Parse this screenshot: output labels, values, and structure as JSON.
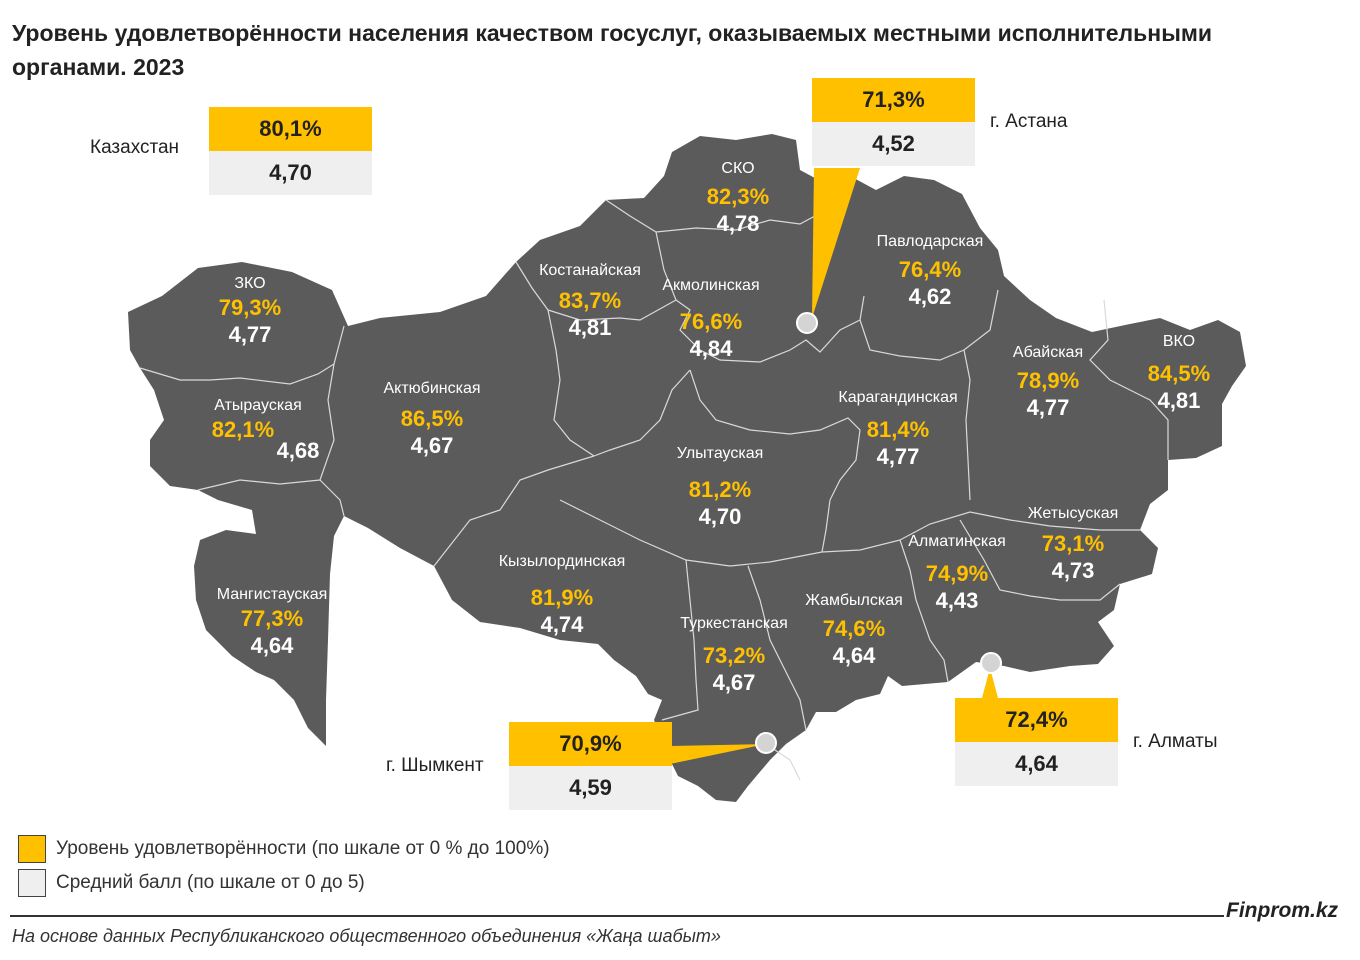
{
  "title": "Уровень удовлетворённости населения качеством госуслуг, оказываемых местными исполнительными органами. 2023",
  "colors": {
    "map_fill": "#5b5b5b",
    "border": "#d9d9d9",
    "accent": "#ffc000",
    "score_bg": "#efefef"
  },
  "regions": [
    {
      "name": "ЗКО",
      "pct": "79,3%",
      "score": "4,77"
    },
    {
      "name": "Атырауская",
      "pct": "82,1%",
      "score": "4,68"
    },
    {
      "name": "Мангистауская",
      "pct": "77,3%",
      "score": "4,64"
    },
    {
      "name": "Актюбинская",
      "pct": "86,5%",
      "score": "4,67"
    },
    {
      "name": "Костанайская",
      "pct": "83,7%",
      "score": "4,81"
    },
    {
      "name": "СКО",
      "pct": "82,3%",
      "score": "4,78"
    },
    {
      "name": "Акмолинская",
      "pct": "76,6%",
      "score": "4,84"
    },
    {
      "name": "Павлодарская",
      "pct": "76,4%",
      "score": "4,62"
    },
    {
      "name": "Абайская",
      "pct": "78,9%",
      "score": "4,77"
    },
    {
      "name": "ВКО",
      "pct": "84,5%",
      "score": "4,81"
    },
    {
      "name": "Карагандинская",
      "pct": "81,4%",
      "score": "4,77"
    },
    {
      "name": "Улытауская",
      "pct": "81,2%",
      "score": "4,70"
    },
    {
      "name": "Кызылординская",
      "pct": "81,9%",
      "score": "4,74"
    },
    {
      "name": "Туркестанская",
      "pct": "73,2%",
      "score": "4,67"
    },
    {
      "name": "Жамбылская",
      "pct": "74,6%",
      "score": "4,64"
    },
    {
      "name": "Алматинская",
      "pct": "74,9%",
      "score": "4,43"
    },
    {
      "name": "Жетысуская",
      "pct": "73,1%",
      "score": "4,73"
    }
  ],
  "callouts": [
    {
      "name": "Казахстан",
      "pct": "80,1%",
      "score": "4,70"
    },
    {
      "name": "г. Астана",
      "pct": "71,3%",
      "score": "4,52"
    },
    {
      "name": "г. Шымкент",
      "pct": "70,9%",
      "score": "4,59"
    },
    {
      "name": "г. Алматы",
      "pct": "72,4%",
      "score": "4,64"
    }
  ],
  "legend": [
    {
      "label": "Уровень удовлетворённости (по шкале от 0 % до 100%)",
      "color": "#ffc000"
    },
    {
      "label": "Средний балл (по шкале от 0 до 5)",
      "color": "#efefef"
    }
  ],
  "brand": "Finprom.kz",
  "source": "На основе данных Республиканского общественного объединения «Жаңа шабыт»"
}
